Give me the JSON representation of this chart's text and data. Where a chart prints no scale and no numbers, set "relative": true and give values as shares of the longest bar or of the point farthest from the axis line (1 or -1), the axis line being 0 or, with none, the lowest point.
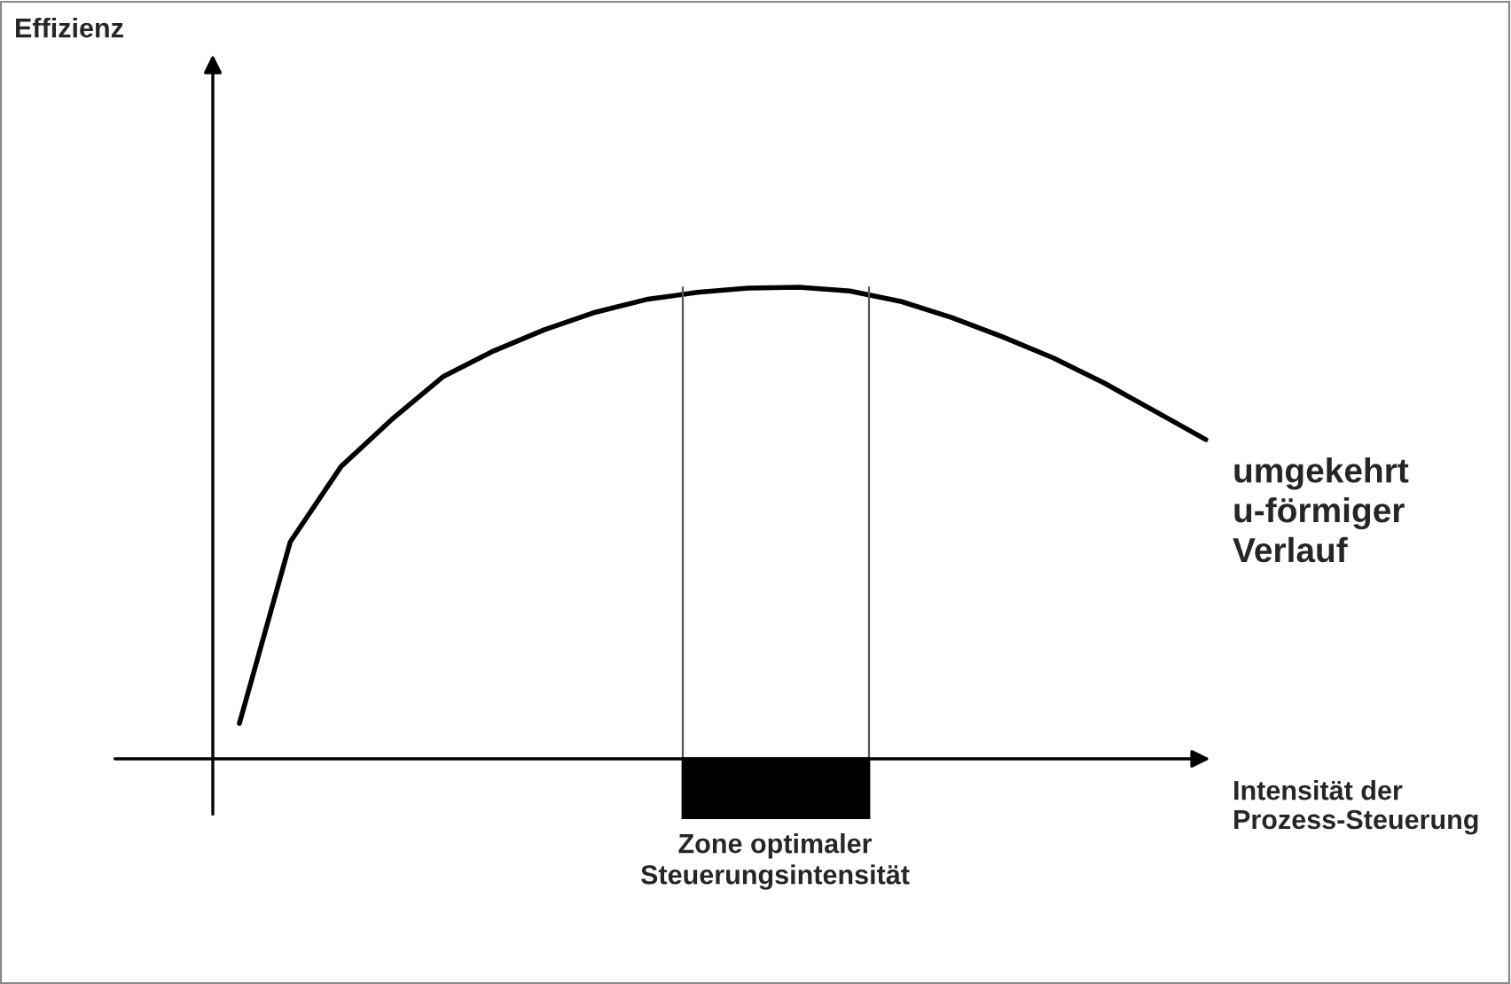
{
  "chart_data": {
    "type": "line",
    "relative": true,
    "xlabel": "Intensität der\nProzess-Steuerung",
    "categories": [
      null,
      null,
      null,
      null,
      null,
      null,
      null,
      null,
      null,
      null,
      null,
      null,
      null,
      null,
      null,
      null,
      null,
      null,
      null,
      null
    ],
    "series": [
      {
        "color": "#000000",
        "values": [
          0.075,
          0.46,
          0.62,
          0.72,
          0.81,
          0.865,
          0.91,
          0.947,
          0.974,
          0.989,
          0.998,
          1,
          0.992,
          0.97,
          0.936,
          0.895,
          0.85,
          0.797,
          0.737,
          0.677
        ]
      }
    ],
    "annotations": [
      "Effizienz",
      "umgekehrt\nu-förmiger\nVerlauf",
      "Zone optimaler\nSteuerungsintensität"
    ],
    "line_style": "solid"
  }
}
